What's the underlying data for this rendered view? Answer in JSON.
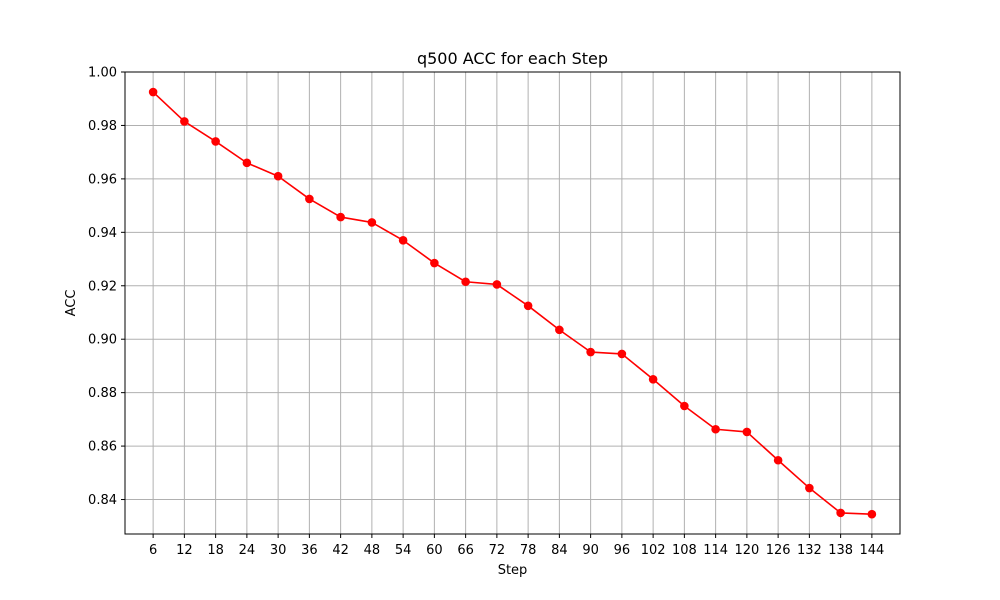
{
  "chart_data": {
    "type": "line",
    "title": "q500 ACC for each Step",
    "xlabel": "Step",
    "ylabel": "ACC",
    "x": [
      6,
      12,
      18,
      24,
      30,
      36,
      42,
      48,
      54,
      60,
      66,
      72,
      78,
      84,
      90,
      96,
      102,
      108,
      114,
      120,
      126,
      132,
      138,
      144
    ],
    "series": [
      {
        "name": "",
        "color": "#ff0000",
        "marker": "circle",
        "values": [
          0.9925,
          0.9815,
          0.974,
          0.966,
          0.961,
          0.9525,
          0.9457,
          0.9437,
          0.937,
          0.9285,
          0.9215,
          0.9205,
          0.9125,
          0.9035,
          0.8952,
          0.8945,
          0.885,
          0.875,
          0.8663,
          0.8653,
          0.8547,
          0.8443,
          0.835,
          0.8345
        ]
      }
    ],
    "xlim": [
      0.6,
      149.4
    ],
    "ylim": [
      0.8271,
      1.0
    ],
    "yticks": [
      0.84,
      0.86,
      0.88,
      0.9,
      0.92,
      0.94,
      0.96,
      0.98,
      1.0
    ],
    "ytick_labels": [
      "0.84",
      "0.86",
      "0.88",
      "0.90",
      "0.92",
      "0.94",
      "0.96",
      "0.98",
      "1.00"
    ],
    "xticks": [
      6,
      12,
      18,
      24,
      30,
      36,
      42,
      48,
      54,
      60,
      66,
      72,
      78,
      84,
      90,
      96,
      102,
      108,
      114,
      120,
      126,
      132,
      138,
      144
    ],
    "xtick_labels": [
      "6",
      "12",
      "18",
      "24",
      "30",
      "36",
      "42",
      "48",
      "54",
      "60",
      "66",
      "72",
      "78",
      "84",
      "90",
      "96",
      "102",
      "108",
      "114",
      "120",
      "126",
      "132",
      "138",
      "144"
    ],
    "grid": true,
    "legend": "none"
  }
}
